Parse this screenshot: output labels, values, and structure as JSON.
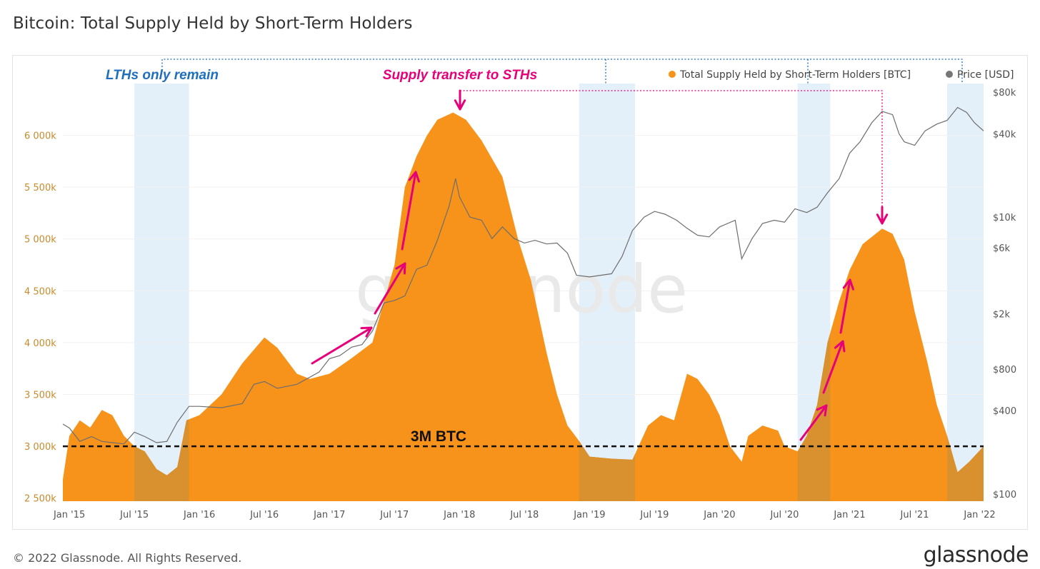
{
  "page": {
    "title": "Bitcoin: Total Supply Held by Short-Term Holders",
    "footer": "© 2022 Glassnode. All Rights Reserved.",
    "logo": "glassnode",
    "watermark": "glassnode"
  },
  "chart_data": {
    "type": "area",
    "title": "Bitcoin: Total Supply Held by Short-Term Holders",
    "x_range": [
      2014.95,
      2022.03
    ],
    "x_ticks": [
      {
        "label": "Jan '15",
        "x": 2015.0
      },
      {
        "label": "Jul '15",
        "x": 2015.5
      },
      {
        "label": "Jan '16",
        "x": 2016.0
      },
      {
        "label": "Jul '16",
        "x": 2016.5
      },
      {
        "label": "Jan '17",
        "x": 2017.0
      },
      {
        "label": "Jul '17",
        "x": 2017.5
      },
      {
        "label": "Jan '18",
        "x": 2018.0
      },
      {
        "label": "Jul '18",
        "x": 2018.5
      },
      {
        "label": "Jan '19",
        "x": 2019.0
      },
      {
        "label": "Jul '19",
        "x": 2019.5
      },
      {
        "label": "Jan '20",
        "x": 2020.0
      },
      {
        "label": "Jul '20",
        "x": 2020.5
      },
      {
        "label": "Jan '21",
        "x": 2021.0
      },
      {
        "label": "Jul '21",
        "x": 2021.5
      },
      {
        "label": "Jan '22",
        "x": 2022.0
      }
    ],
    "y_left": {
      "range": [
        2470000,
        6500000
      ],
      "ticks": [
        {
          "label": "2 500k",
          "v": 2500000
        },
        {
          "label": "3 000k",
          "v": 3000000
        },
        {
          "label": "3 500k",
          "v": 3500000
        },
        {
          "label": "4 000k",
          "v": 4000000
        },
        {
          "label": "4 500k",
          "v": 4500000
        },
        {
          "label": "5 000k",
          "v": 5000000
        },
        {
          "label": "5 500k",
          "v": 5500000
        },
        {
          "label": "6 000k",
          "v": 6000000
        }
      ]
    },
    "y_right": {
      "scale": "log",
      "range": [
        100,
        80000
      ],
      "ticks": [
        {
          "label": "$100",
          "v": 100
        },
        {
          "label": "$400",
          "v": 400
        },
        {
          "label": "$800",
          "v": 800
        },
        {
          "label": "$2k",
          "v": 2000
        },
        {
          "label": "$6k",
          "v": 6000
        },
        {
          "label": "$10k",
          "v": 10000
        },
        {
          "label": "$40k",
          "v": 40000
        },
        {
          "label": "$80k",
          "v": 80000
        }
      ]
    },
    "series": [
      {
        "name": "Total Supply Held by Short-Term Holders [BTC]",
        "color": "#f7931a",
        "points": [
          [
            2014.95,
            2680000
          ],
          [
            2015.0,
            3100000
          ],
          [
            2015.08,
            3250000
          ],
          [
            2015.16,
            3180000
          ],
          [
            2015.25,
            3350000
          ],
          [
            2015.33,
            3300000
          ],
          [
            2015.42,
            3100000
          ],
          [
            2015.5,
            3000000
          ],
          [
            2015.58,
            2950000
          ],
          [
            2015.67,
            2780000
          ],
          [
            2015.75,
            2720000
          ],
          [
            2015.83,
            2800000
          ],
          [
            2015.9,
            3250000
          ],
          [
            2016.0,
            3300000
          ],
          [
            2016.17,
            3500000
          ],
          [
            2016.33,
            3800000
          ],
          [
            2016.5,
            4050000
          ],
          [
            2016.6,
            3950000
          ],
          [
            2016.75,
            3700000
          ],
          [
            2016.85,
            3650000
          ],
          [
            2017.0,
            3700000
          ],
          [
            2017.17,
            3850000
          ],
          [
            2017.33,
            4000000
          ],
          [
            2017.42,
            4400000
          ],
          [
            2017.5,
            4750000
          ],
          [
            2017.58,
            5500000
          ],
          [
            2017.67,
            5800000
          ],
          [
            2017.75,
            6000000
          ],
          [
            2017.83,
            6150000
          ],
          [
            2017.95,
            6220000
          ],
          [
            2018.05,
            6150000
          ],
          [
            2018.17,
            5950000
          ],
          [
            2018.33,
            5600000
          ],
          [
            2018.45,
            5000000
          ],
          [
            2018.55,
            4600000
          ],
          [
            2018.67,
            3900000
          ],
          [
            2018.75,
            3500000
          ],
          [
            2018.83,
            3200000
          ],
          [
            2018.92,
            3050000
          ],
          [
            2019.0,
            2900000
          ],
          [
            2019.17,
            2880000
          ],
          [
            2019.33,
            2870000
          ],
          [
            2019.45,
            3200000
          ],
          [
            2019.55,
            3300000
          ],
          [
            2019.65,
            3250000
          ],
          [
            2019.75,
            3700000
          ],
          [
            2019.83,
            3650000
          ],
          [
            2019.92,
            3500000
          ],
          [
            2020.0,
            3300000
          ],
          [
            2020.08,
            3000000
          ],
          [
            2020.17,
            2850000
          ],
          [
            2020.22,
            3100000
          ],
          [
            2020.33,
            3200000
          ],
          [
            2020.45,
            3150000
          ],
          [
            2020.5,
            3000000
          ],
          [
            2020.6,
            2950000
          ],
          [
            2020.67,
            3100000
          ],
          [
            2020.75,
            3400000
          ],
          [
            2020.83,
            4000000
          ],
          [
            2020.92,
            4400000
          ],
          [
            2021.0,
            4700000
          ],
          [
            2021.1,
            4950000
          ],
          [
            2021.25,
            5100000
          ],
          [
            2021.33,
            5050000
          ],
          [
            2021.42,
            4800000
          ],
          [
            2021.5,
            4300000
          ],
          [
            2021.6,
            3800000
          ],
          [
            2021.67,
            3400000
          ],
          [
            2021.75,
            3100000
          ],
          [
            2021.83,
            2750000
          ],
          [
            2021.92,
            2850000
          ],
          [
            2022.03,
            3000000
          ]
        ]
      },
      {
        "name": "Price [USD]",
        "color": "#777777",
        "points": [
          [
            2014.95,
            320
          ],
          [
            2015.0,
            300
          ],
          [
            2015.08,
            240
          ],
          [
            2015.17,
            260
          ],
          [
            2015.25,
            240
          ],
          [
            2015.33,
            235
          ],
          [
            2015.42,
            230
          ],
          [
            2015.5,
            280
          ],
          [
            2015.58,
            260
          ],
          [
            2015.67,
            235
          ],
          [
            2015.75,
            240
          ],
          [
            2015.83,
            330
          ],
          [
            2015.92,
            430
          ],
          [
            2016.0,
            430
          ],
          [
            2016.17,
            420
          ],
          [
            2016.33,
            450
          ],
          [
            2016.42,
            620
          ],
          [
            2016.5,
            650
          ],
          [
            2016.6,
            580
          ],
          [
            2016.75,
            620
          ],
          [
            2016.92,
            760
          ],
          [
            2017.0,
            950
          ],
          [
            2017.08,
            1000
          ],
          [
            2017.17,
            1150
          ],
          [
            2017.25,
            1200
          ],
          [
            2017.33,
            1500
          ],
          [
            2017.42,
            2400
          ],
          [
            2017.5,
            2500
          ],
          [
            2017.58,
            2700
          ],
          [
            2017.67,
            4200
          ],
          [
            2017.75,
            4500
          ],
          [
            2017.83,
            6800
          ],
          [
            2017.92,
            12000
          ],
          [
            2017.97,
            19000
          ],
          [
            2018.0,
            14000
          ],
          [
            2018.08,
            10000
          ],
          [
            2018.17,
            9500
          ],
          [
            2018.25,
            7000
          ],
          [
            2018.33,
            8500
          ],
          [
            2018.42,
            7000
          ],
          [
            2018.5,
            6500
          ],
          [
            2018.58,
            6800
          ],
          [
            2018.67,
            6400
          ],
          [
            2018.75,
            6500
          ],
          [
            2018.83,
            5500
          ],
          [
            2018.9,
            3800
          ],
          [
            2019.0,
            3700
          ],
          [
            2019.17,
            3900
          ],
          [
            2019.25,
            5200
          ],
          [
            2019.33,
            8000
          ],
          [
            2019.42,
            10000
          ],
          [
            2019.5,
            11000
          ],
          [
            2019.58,
            10500
          ],
          [
            2019.67,
            9500
          ],
          [
            2019.75,
            8300
          ],
          [
            2019.83,
            7400
          ],
          [
            2019.92,
            7200
          ],
          [
            2020.0,
            8500
          ],
          [
            2020.12,
            9500
          ],
          [
            2020.17,
            5000
          ],
          [
            2020.25,
            7000
          ],
          [
            2020.33,
            9000
          ],
          [
            2020.42,
            9500
          ],
          [
            2020.5,
            9200
          ],
          [
            2020.58,
            11500
          ],
          [
            2020.67,
            10800
          ],
          [
            2020.75,
            11800
          ],
          [
            2020.83,
            15000
          ],
          [
            2020.92,
            19000
          ],
          [
            2021.0,
            29000
          ],
          [
            2021.08,
            35000
          ],
          [
            2021.17,
            48000
          ],
          [
            2021.25,
            58000
          ],
          [
            2021.33,
            55000
          ],
          [
            2021.38,
            40000
          ],
          [
            2021.42,
            35000
          ],
          [
            2021.5,
            33000
          ],
          [
            2021.58,
            42000
          ],
          [
            2021.67,
            47000
          ],
          [
            2021.75,
            50000
          ],
          [
            2021.83,
            62000
          ],
          [
            2021.9,
            57000
          ],
          [
            2021.96,
            48000
          ],
          [
            2022.03,
            42000
          ]
        ]
      }
    ],
    "shaded_regions": [
      [
        2015.5,
        2015.92
      ],
      [
        2018.92,
        2019.35
      ],
      [
        2020.6,
        2020.85
      ],
      [
        2021.75,
        2022.03
      ]
    ],
    "reference_line": {
      "value": 3000000,
      "label": "3M BTC"
    },
    "annotations": [
      {
        "text": "LTHs only remain",
        "color": "#1f6fbf"
      },
      {
        "text": "Supply transfer to STHs",
        "color": "#e6007a"
      }
    ],
    "legend": {
      "position": "top-right"
    },
    "xlabel": "",
    "ylabel": ""
  }
}
